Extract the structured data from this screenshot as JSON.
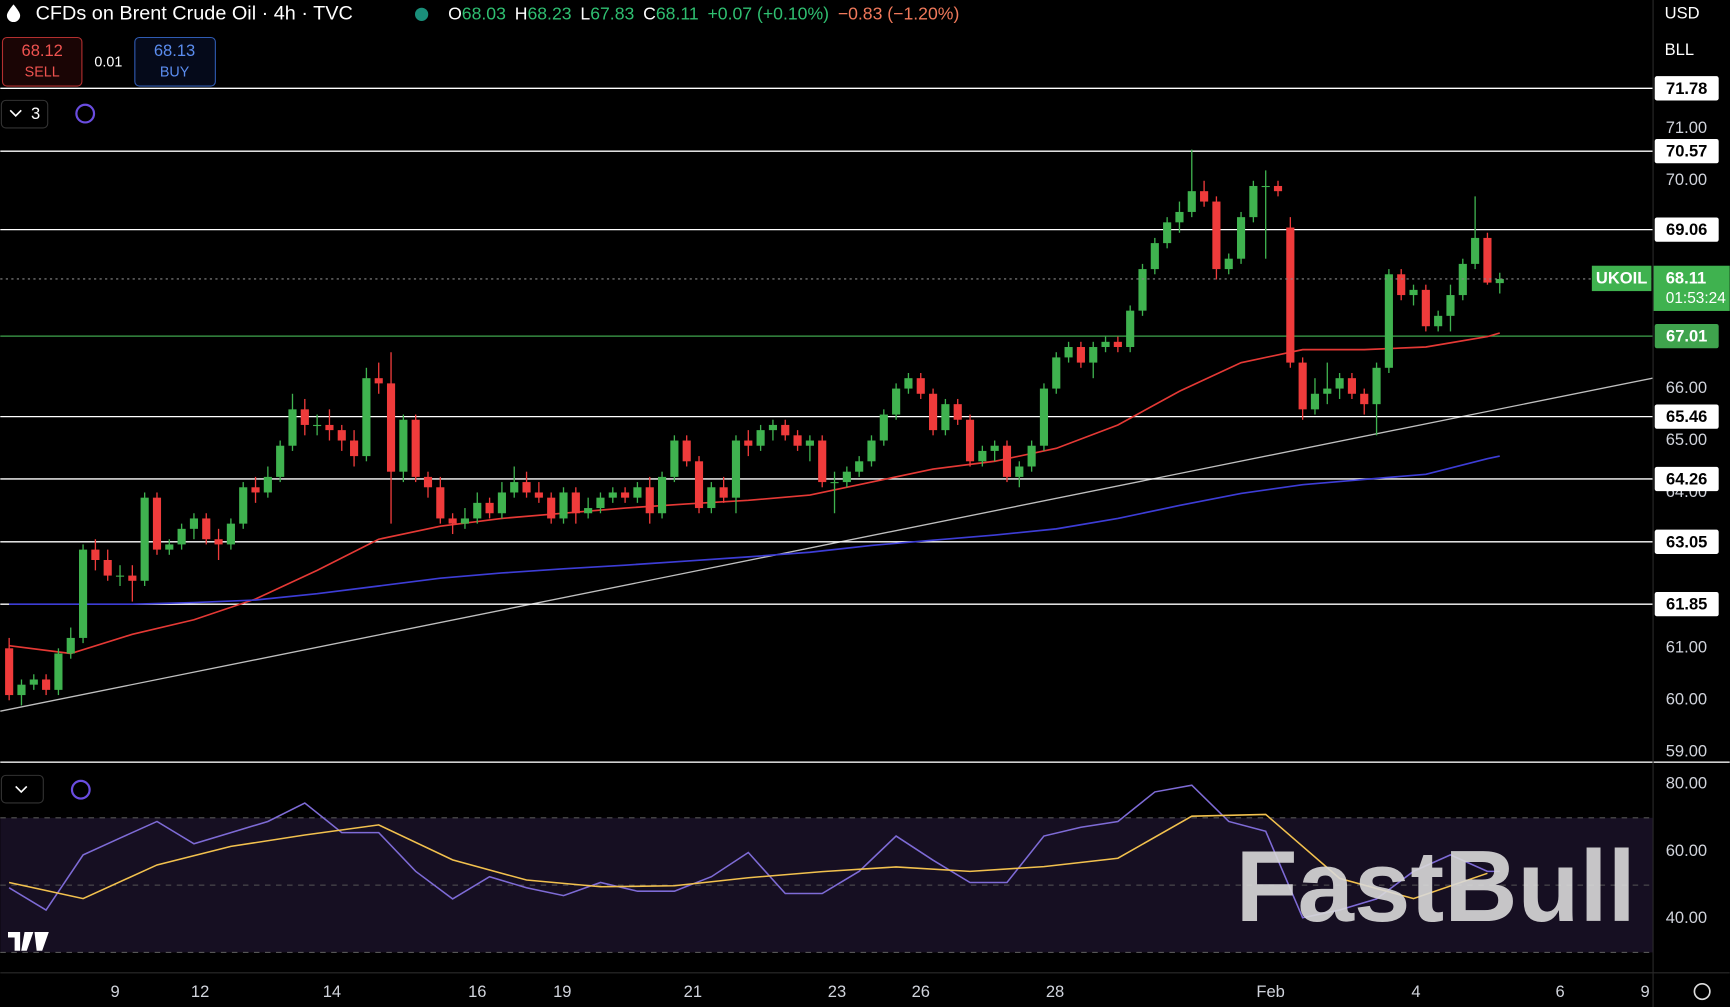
{
  "header": {
    "title": "CFDs on Brent Crude Oil · 4h · TVC",
    "ohlc_labels": [
      "O",
      "H",
      "L",
      "C"
    ],
    "ohlc_values": [
      68.03,
      68.23,
      67.83,
      68.11
    ],
    "change": "+0.07 (+0.10%)",
    "change_day": "−0.83 (−1.20%)",
    "currency": "USD",
    "unit": "BLL"
  },
  "trade": {
    "sell_price": 68.12,
    "sell_label": "SELL",
    "spread": 0.01,
    "buy_price": 68.13,
    "buy_label": "BUY"
  },
  "indicators_count": 3,
  "watermark": "FastBull",
  "chart_data": [
    {
      "type": "candlestick",
      "symbol": "UKOIL",
      "last_price": 68.11,
      "countdown": "01:53:24",
      "up_color": "#3fb24f",
      "down_color": "#ef3b3b",
      "xlim": [
        -0.72,
        133.4
      ],
      "ylim": [
        58.83,
        73.48
      ],
      "yticks": [
        {
          "value": 71,
          "label": "71.00"
        },
        {
          "value": 70,
          "label": "70.00"
        },
        {
          "value": 66,
          "label": "66.00"
        },
        {
          "value": 65,
          "label": "65.00"
        },
        {
          "value": 64,
          "label": "64.00"
        },
        {
          "value": 61,
          "label": "61.00"
        },
        {
          "value": 60,
          "label": "60.00"
        },
        {
          "value": 59,
          "label": "59.00"
        }
      ],
      "xticks": [
        {
          "value": 8.6,
          "label": "9"
        },
        {
          "value": 15.5,
          "label": "12"
        },
        {
          "value": 26.2,
          "label": "14"
        },
        {
          "value": 38.0,
          "label": "16"
        },
        {
          "value": 44.9,
          "label": "19"
        },
        {
          "value": 55.5,
          "label": "21"
        },
        {
          "value": 67.2,
          "label": "23"
        },
        {
          "value": 74.0,
          "label": "26"
        },
        {
          "value": 84.9,
          "label": "28"
        },
        {
          "value": 102.4,
          "label": "Feb"
        },
        {
          "value": 114.2,
          "label": "4"
        },
        {
          "value": 125.9,
          "label": "6"
        },
        {
          "value": 132.8,
          "label": "9"
        }
      ],
      "levels": [
        {
          "value": 71.78,
          "color": "#ffffff"
        },
        {
          "value": 70.57,
          "color": "#ffffff"
        },
        {
          "value": 69.06,
          "color": "#ffffff"
        },
        {
          "value": 67.01,
          "color": "#3fa34d"
        },
        {
          "value": 65.46,
          "color": "#ffffff"
        },
        {
          "value": 64.26,
          "color": "#ffffff"
        },
        {
          "value": 63.05,
          "color": "#ffffff"
        },
        {
          "value": 61.85,
          "color": "#ffffff"
        }
      ],
      "ohlc": [
        [
          61.0,
          61.2,
          60.0,
          60.1
        ],
        [
          60.1,
          60.4,
          59.9,
          60.3
        ],
        [
          60.3,
          60.5,
          60.2,
          60.4
        ],
        [
          60.4,
          60.5,
          60.1,
          60.2
        ],
        [
          60.2,
          61.0,
          60.1,
          60.9
        ],
        [
          60.9,
          61.4,
          60.8,
          61.2
        ],
        [
          61.2,
          63.0,
          61.1,
          62.9
        ],
        [
          62.9,
          63.1,
          62.5,
          62.7
        ],
        [
          62.7,
          62.9,
          62.3,
          62.4
        ],
        [
          62.4,
          62.6,
          62.2,
          62.4
        ],
        [
          62.4,
          62.6,
          61.9,
          62.3
        ],
        [
          62.3,
          64.0,
          62.2,
          63.9
        ],
        [
          63.9,
          64.0,
          62.8,
          62.9
        ],
        [
          62.9,
          63.1,
          62.8,
          63.0
        ],
        [
          63.0,
          63.4,
          62.9,
          63.3
        ],
        [
          63.3,
          63.6,
          63.1,
          63.5
        ],
        [
          63.5,
          63.6,
          63.0,
          63.1
        ],
        [
          63.1,
          63.3,
          62.7,
          63.0
        ],
        [
          63.0,
          63.5,
          62.9,
          63.4
        ],
        [
          63.4,
          64.2,
          63.3,
          64.1
        ],
        [
          64.1,
          64.3,
          63.8,
          64.0
        ],
        [
          64.0,
          64.5,
          63.9,
          64.3
        ],
        [
          64.3,
          65.0,
          64.2,
          64.9
        ],
        [
          64.9,
          65.9,
          64.8,
          65.6
        ],
        [
          65.6,
          65.8,
          65.1,
          65.3
        ],
        [
          65.3,
          65.5,
          65.1,
          65.3
        ],
        [
          65.3,
          65.6,
          65.0,
          65.2
        ],
        [
          65.2,
          65.3,
          64.8,
          65.0
        ],
        [
          65.0,
          65.2,
          64.5,
          64.7
        ],
        [
          64.7,
          66.4,
          64.6,
          66.2
        ],
        [
          66.2,
          66.5,
          65.9,
          66.1
        ],
        [
          66.1,
          66.7,
          63.4,
          64.4
        ],
        [
          64.4,
          65.5,
          64.2,
          65.4
        ],
        [
          65.4,
          65.5,
          64.2,
          64.3
        ],
        [
          64.3,
          64.4,
          63.9,
          64.1
        ],
        [
          64.1,
          64.3,
          63.4,
          63.5
        ],
        [
          63.5,
          63.6,
          63.2,
          63.4
        ],
        [
          63.4,
          63.7,
          63.3,
          63.5
        ],
        [
          63.5,
          64.0,
          63.4,
          63.8
        ],
        [
          63.8,
          63.9,
          63.5,
          63.6
        ],
        [
          63.6,
          64.2,
          63.5,
          64.0
        ],
        [
          64.0,
          64.5,
          63.9,
          64.2
        ],
        [
          64.2,
          64.4,
          63.9,
          64.0
        ],
        [
          64.0,
          64.2,
          63.8,
          63.9
        ],
        [
          63.9,
          64.0,
          63.4,
          63.5
        ],
        [
          63.5,
          64.1,
          63.4,
          64.0
        ],
        [
          64.0,
          64.1,
          63.4,
          63.6
        ],
        [
          63.6,
          63.9,
          63.5,
          63.7
        ],
        [
          63.7,
          64.0,
          63.6,
          63.9
        ],
        [
          63.9,
          64.1,
          63.8,
          64.0
        ],
        [
          64.0,
          64.1,
          63.8,
          63.9
        ],
        [
          63.9,
          64.2,
          63.8,
          64.1
        ],
        [
          64.1,
          64.3,
          63.4,
          63.6
        ],
        [
          63.6,
          64.4,
          63.5,
          64.3
        ],
        [
          64.3,
          65.1,
          64.2,
          65.0
        ],
        [
          65.0,
          65.1,
          64.5,
          64.6
        ],
        [
          64.6,
          64.7,
          63.6,
          63.7
        ],
        [
          63.7,
          64.2,
          63.6,
          64.1
        ],
        [
          64.1,
          64.3,
          63.8,
          63.9
        ],
        [
          63.9,
          65.1,
          63.6,
          65.0
        ],
        [
          65.0,
          65.2,
          64.7,
          64.9
        ],
        [
          64.9,
          65.3,
          64.8,
          65.2
        ],
        [
          65.2,
          65.4,
          65.0,
          65.3
        ],
        [
          65.3,
          65.4,
          65.0,
          65.1
        ],
        [
          65.1,
          65.2,
          64.8,
          64.9
        ],
        [
          64.9,
          65.1,
          64.6,
          65.0
        ],
        [
          65.0,
          65.1,
          64.1,
          64.2
        ],
        [
          64.2,
          64.4,
          63.6,
          64.2
        ],
        [
          64.2,
          64.5,
          64.1,
          64.4
        ],
        [
          64.4,
          64.7,
          64.3,
          64.6
        ],
        [
          64.6,
          65.1,
          64.5,
          65.0
        ],
        [
          65.0,
          65.6,
          64.9,
          65.5
        ],
        [
          65.5,
          66.1,
          65.4,
          66.0
        ],
        [
          66.0,
          66.3,
          65.9,
          66.2
        ],
        [
          66.2,
          66.3,
          65.8,
          65.9
        ],
        [
          65.9,
          66.0,
          65.1,
          65.2
        ],
        [
          65.2,
          65.8,
          65.1,
          65.7
        ],
        [
          65.7,
          65.8,
          65.3,
          65.4
        ],
        [
          65.4,
          65.5,
          64.5,
          64.6
        ],
        [
          64.6,
          64.9,
          64.5,
          64.8
        ],
        [
          64.8,
          65.0,
          64.6,
          64.9
        ],
        [
          64.9,
          65.0,
          64.2,
          64.3
        ],
        [
          64.3,
          64.6,
          64.1,
          64.5
        ],
        [
          64.5,
          65.0,
          64.4,
          64.9
        ],
        [
          64.9,
          66.1,
          64.8,
          66.0
        ],
        [
          66.0,
          66.7,
          65.9,
          66.6
        ],
        [
          66.6,
          66.9,
          66.5,
          66.8
        ],
        [
          66.8,
          66.9,
          66.4,
          66.5
        ],
        [
          66.5,
          66.9,
          66.2,
          66.8
        ],
        [
          66.8,
          67.0,
          66.7,
          66.9
        ],
        [
          66.9,
          67.0,
          66.7,
          66.8
        ],
        [
          66.8,
          67.6,
          66.7,
          67.5
        ],
        [
          67.5,
          68.4,
          67.4,
          68.3
        ],
        [
          68.3,
          68.9,
          68.2,
          68.8
        ],
        [
          68.8,
          69.3,
          68.7,
          69.2
        ],
        [
          69.2,
          69.6,
          69.0,
          69.4
        ],
        [
          69.4,
          70.6,
          69.3,
          69.8
        ],
        [
          69.8,
          70.0,
          69.5,
          69.6
        ],
        [
          69.6,
          69.7,
          68.1,
          68.3
        ],
        [
          68.3,
          68.6,
          68.2,
          68.5
        ],
        [
          68.5,
          69.4,
          68.4,
          69.3
        ],
        [
          69.3,
          70.0,
          69.2,
          69.9
        ],
        [
          69.9,
          70.2,
          68.5,
          69.9
        ],
        [
          69.9,
          70.0,
          69.7,
          69.8
        ],
        [
          69.1,
          69.3,
          66.4,
          66.5
        ],
        [
          66.5,
          66.6,
          65.4,
          65.6
        ],
        [
          65.6,
          66.2,
          65.5,
          65.9
        ],
        [
          65.9,
          66.5,
          65.7,
          66.0
        ],
        [
          66.0,
          66.3,
          65.8,
          66.2
        ],
        [
          66.2,
          66.3,
          65.8,
          65.9
        ],
        [
          65.9,
          66.0,
          65.5,
          65.7
        ],
        [
          65.7,
          66.5,
          65.1,
          66.4
        ],
        [
          66.4,
          68.3,
          66.3,
          68.2
        ],
        [
          68.2,
          68.3,
          67.7,
          67.8
        ],
        [
          67.8,
          68.0,
          67.6,
          67.9
        ],
        [
          67.9,
          68.0,
          67.1,
          67.2
        ],
        [
          67.2,
          67.5,
          67.1,
          67.4
        ],
        [
          67.4,
          68.0,
          67.1,
          67.8
        ],
        [
          67.8,
          68.5,
          67.7,
          68.4
        ],
        [
          68.4,
          69.7,
          68.3,
          68.9
        ],
        [
          68.9,
          69.0,
          68.0,
          68.04
        ],
        [
          68.03,
          68.23,
          67.83,
          68.11
        ]
      ],
      "lines": [
        {
          "color": "#e53935",
          "x": [
            0,
            5,
            10,
            15,
            20,
            25,
            30,
            35,
            40,
            45,
            50,
            55,
            60,
            65,
            70,
            75,
            80,
            85,
            90,
            95,
            100,
            105,
            110,
            115,
            120,
            121
          ],
          "values": [
            61.05,
            60.9,
            61.27,
            61.55,
            61.95,
            62.5,
            63.1,
            63.35,
            63.5,
            63.6,
            63.7,
            63.78,
            63.85,
            63.95,
            64.2,
            64.45,
            64.6,
            64.85,
            65.3,
            65.95,
            66.5,
            66.75,
            66.75,
            66.8,
            67.0,
            67.07
          ]
        },
        {
          "color": "#3d3dd6",
          "x": [
            0,
            5,
            10,
            15,
            20,
            25,
            30,
            35,
            40,
            45,
            50,
            55,
            60,
            65,
            70,
            75,
            80,
            85,
            90,
            95,
            100,
            105,
            110,
            115,
            120,
            121
          ],
          "values": [
            61.85,
            61.85,
            61.85,
            61.88,
            61.93,
            62.05,
            62.2,
            62.35,
            62.45,
            62.53,
            62.6,
            62.68,
            62.76,
            62.85,
            62.98,
            63.08,
            63.18,
            63.3,
            63.5,
            63.75,
            63.98,
            64.15,
            64.25,
            64.35,
            64.65,
            64.7
          ]
        }
      ],
      "trend_line": {
        "color": "#bfbfbf",
        "x": [
          -0.72,
          133.4
        ],
        "values": [
          59.79,
          66.2
        ]
      }
    },
    {
      "type": "line",
      "ylim": [
        24.6,
        83.6
      ],
      "xlim": [
        -0.72,
        133.4
      ],
      "yticks": [
        {
          "value": 80,
          "label": "80.00"
        },
        {
          "value": 60,
          "label": "60.00"
        },
        {
          "value": 40,
          "label": "40.00"
        }
      ],
      "bands": [
        70,
        50,
        30
      ],
      "band_fill": "#160f22",
      "series": [
        {
          "color": "#7e6bd6",
          "x": [
            0,
            3,
            6,
            9,
            12,
            15,
            18,
            21,
            24,
            27,
            30,
            33,
            36,
            39,
            42,
            45,
            48,
            51,
            54,
            57,
            60,
            63,
            66,
            69,
            72,
            75,
            78,
            81,
            84,
            87,
            90,
            93,
            96,
            99,
            102,
            105,
            108,
            111,
            114,
            117,
            120,
            121
          ],
          "values": [
            49.2,
            42.6,
            59,
            64,
            68.9,
            62.3,
            65.6,
            68.9,
            74.4,
            65.6,
            65.6,
            54.1,
            45.9,
            52.5,
            49.2,
            46.9,
            50.8,
            48.2,
            48.2,
            52.5,
            59.7,
            47.5,
            47.5,
            54.1,
            64.6,
            57.4,
            50.8,
            50.8,
            64.6,
            67.2,
            68.9,
            77.7,
            79.7,
            68.9,
            66,
            40.3,
            42.6,
            45.9,
            54.1,
            59,
            54.1,
            54.1
          ]
        },
        {
          "color": "#f2c14e",
          "x": [
            0,
            6,
            12,
            18,
            24,
            30,
            36,
            42,
            48,
            54,
            60,
            66,
            72,
            78,
            84,
            90,
            96,
            102,
            108,
            114,
            120
          ],
          "values": [
            50.8,
            46,
            56,
            61.5,
            64.9,
            67.9,
            57.5,
            51.5,
            49.5,
            49.8,
            52.2,
            54,
            55.4,
            54.1,
            55.5,
            58,
            70.5,
            71,
            52,
            46,
            53.5
          ]
        }
      ]
    }
  ]
}
